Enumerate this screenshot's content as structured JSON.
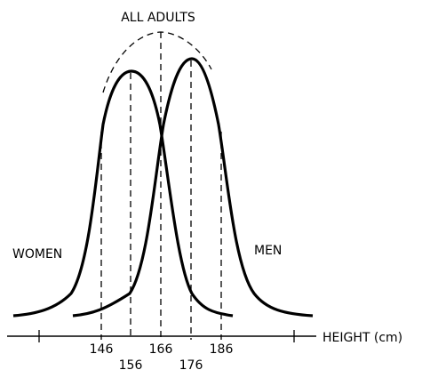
{
  "labels": {
    "all_adults": "ALL ADULTS",
    "women": "WOMEN",
    "men": "MEN",
    "axis": "HEIGHT (cm)"
  },
  "ticks": [
    "146",
    "156",
    "166",
    "176",
    "186"
  ],
  "colors": {
    "ink": "#000000",
    "background": "#ffffff"
  }
}
